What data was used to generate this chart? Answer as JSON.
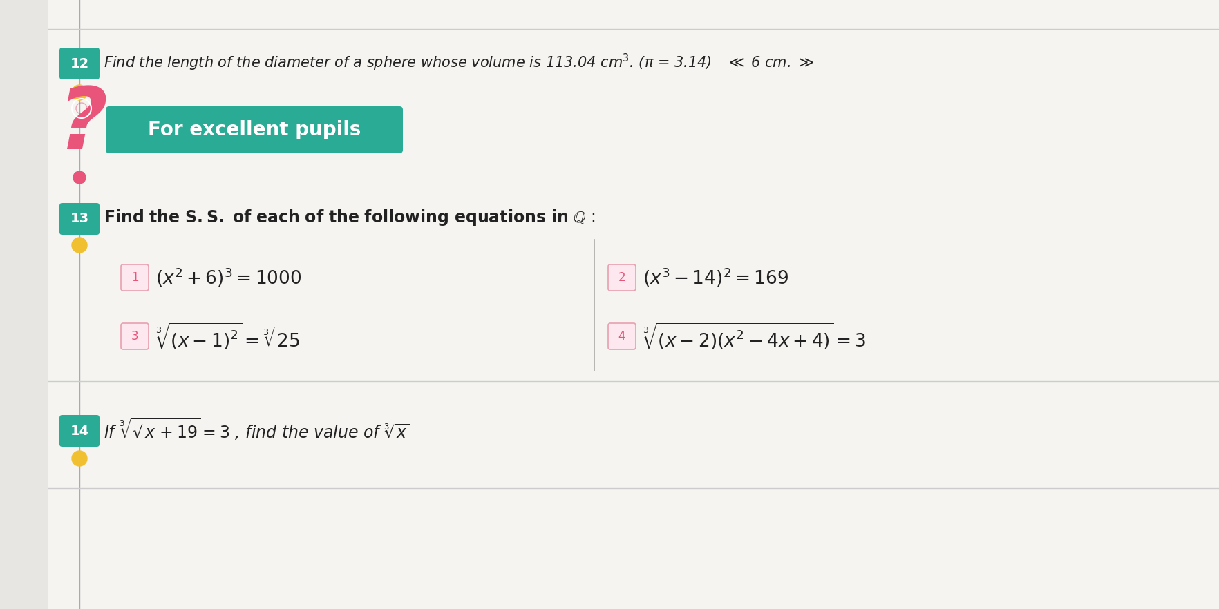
{
  "bg_color": "#e8e6e2",
  "teal_color": "#2aab96",
  "pink_color": "#e8547a",
  "yellow_color": "#f0c030",
  "line_color": "#aaaaaa",
  "text_color": "#222222",
  "banner_text": "For excellent pupils",
  "banner_bg": "#2aab96",
  "white_area_color": "#f5f4f1",
  "divider_color": "#cccccc"
}
